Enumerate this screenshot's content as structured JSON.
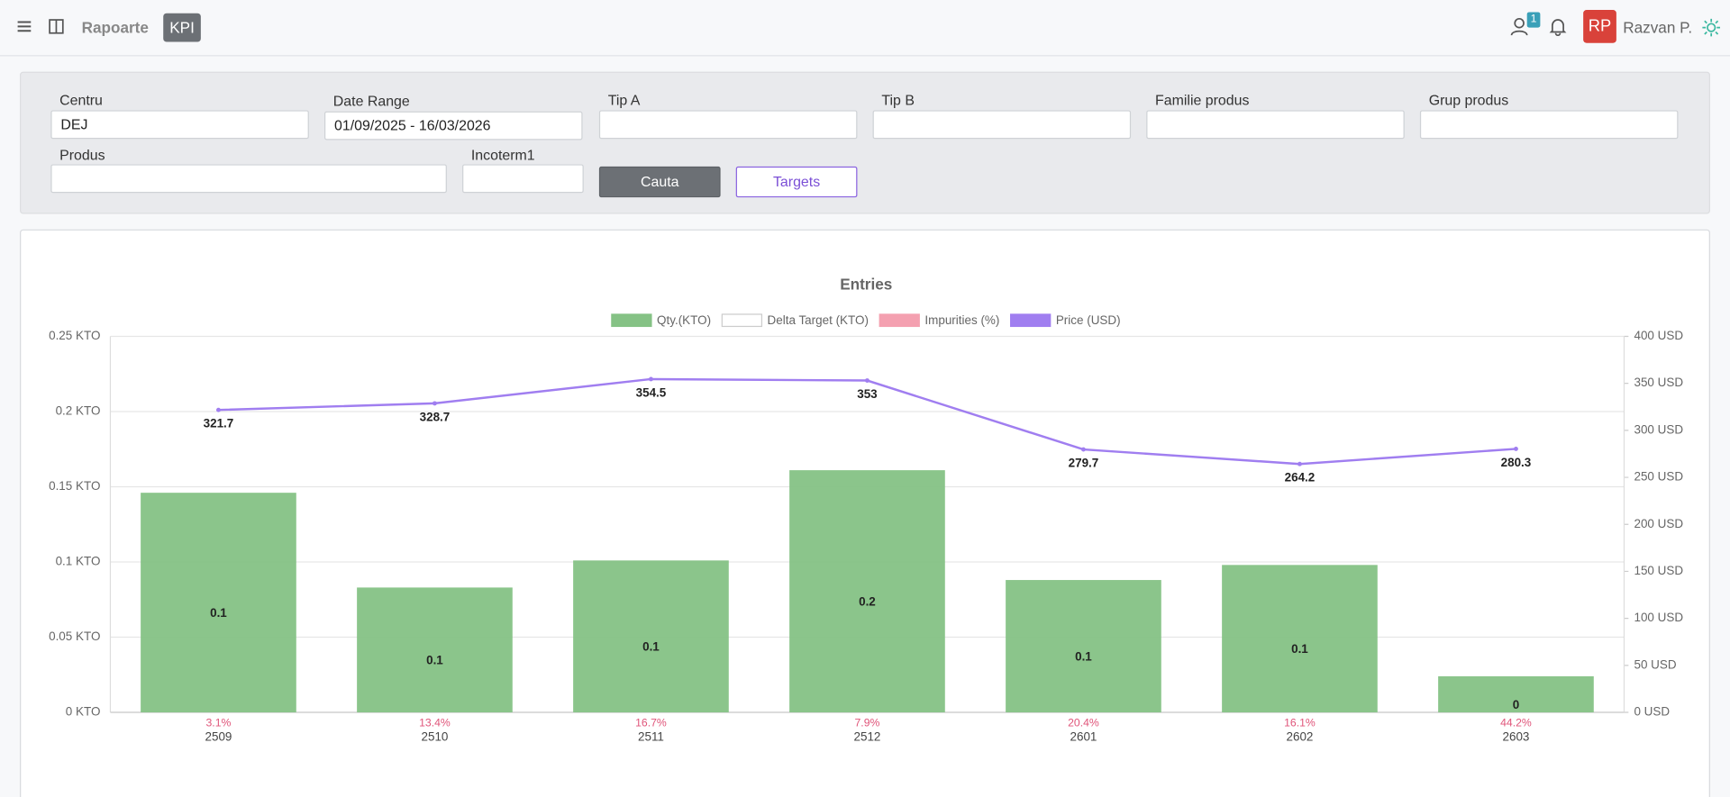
{
  "header": {
    "menu": "Rapoarte",
    "active": "KPI",
    "badge": "1",
    "avatar": "RP",
    "user": "Razvan P."
  },
  "filters": {
    "fields": [
      {
        "label": "Centru",
        "value": "DEJ"
      },
      {
        "label": "Date Range",
        "value": "01/09/2025 - 16/03/2026"
      },
      {
        "label": "Tip A",
        "value": ""
      },
      {
        "label": "Tip B",
        "value": ""
      },
      {
        "label": "Familie produs",
        "value": ""
      },
      {
        "label": "Grup produs",
        "value": ""
      },
      {
        "label": "Produs",
        "value": ""
      },
      {
        "label": "Incoterm1",
        "value": ""
      }
    ],
    "buttons": [
      "Cauta",
      "Targets"
    ]
  },
  "chart_data": {
    "type": "bar",
    "title": "Entries",
    "categories": [
      "2509",
      "2510",
      "2511",
      "2512",
      "2601",
      "2602",
      "2603"
    ],
    "series": [
      {
        "name": "Qty.(KTO)",
        "type": "bar",
        "color": "#85c285",
        "values": [
          0.146,
          0.083,
          0.101,
          0.161,
          0.088,
          0.098,
          0.024
        ],
        "value_labels": [
          "0.1",
          "0.1",
          "0.1",
          "0.2",
          "0.1",
          "0.1",
          "0"
        ]
      },
      {
        "name": "Delta Target (KTO)",
        "type": "bar",
        "color": "#ffffff",
        "values": [
          null,
          null,
          null,
          null,
          null,
          null,
          null
        ]
      },
      {
        "name": "Impurities (%)",
        "type": "label",
        "color": "#f4a0b0",
        "values": [
          3.1,
          13.4,
          16.7,
          7.9,
          20.4,
          16.1,
          44.2
        ],
        "value_labels": [
          "3.1%",
          "13.4%",
          "16.7%",
          "7.9%",
          "20.4%",
          "16.1%",
          "44.2%"
        ]
      },
      {
        "name": "Price (USD)",
        "type": "line",
        "axis": "y2",
        "color": "#a07ef0",
        "values": [
          321.7,
          328.7,
          354.5,
          353,
          279.7,
          264.2,
          280.3
        ]
      }
    ],
    "ylim": [
      0,
      0.25
    ],
    "yticks": [
      {
        "value": 0,
        "label": "0 KTO"
      },
      {
        "value": 0.05,
        "label": "0.05 KTO"
      },
      {
        "value": 0.1,
        "label": "0.1 KTO"
      },
      {
        "value": 0.15,
        "label": "0.15 KTO"
      },
      {
        "value": 0.2,
        "label": "0.2 KTO"
      },
      {
        "value": 0.25,
        "label": "0.25 KTO"
      }
    ],
    "y2lim": [
      0,
      400
    ],
    "y2ticks": [
      {
        "value": 0,
        "label": "0 USD"
      },
      {
        "value": 50,
        "label": "50 USD"
      },
      {
        "value": 100,
        "label": "100 USD"
      },
      {
        "value": 150,
        "label": "150 USD"
      },
      {
        "value": 200,
        "label": "200 USD"
      },
      {
        "value": 250,
        "label": "250 USD"
      },
      {
        "value": 300,
        "label": "300 USD"
      },
      {
        "value": 350,
        "label": "350 USD"
      },
      {
        "value": 400,
        "label": "400 USD"
      }
    ],
    "grid": true,
    "legend": "top"
  }
}
